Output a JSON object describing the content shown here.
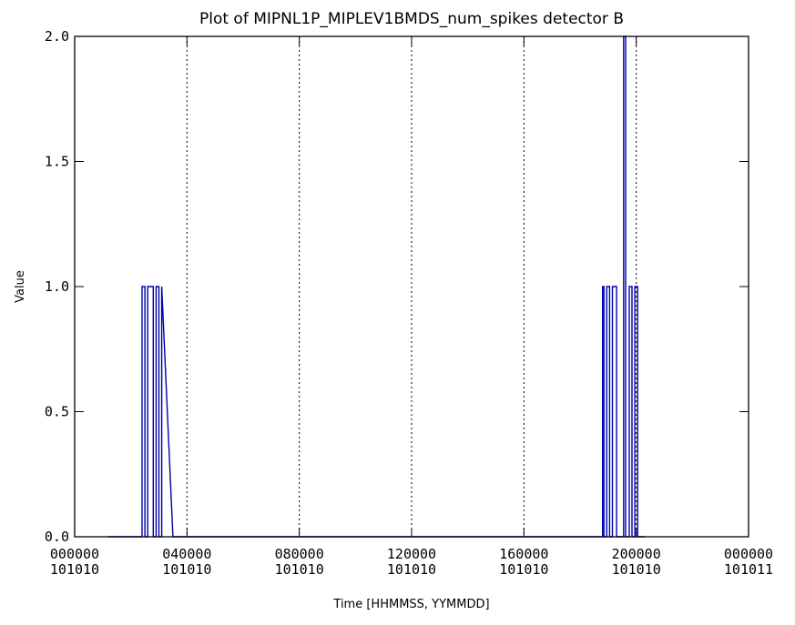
{
  "chart_data": {
    "type": "line",
    "title": "Plot of MIPNL1P_MIPLEV1BMDS_num_spikes detector B",
    "xlabel": "Time [HHMMSS, YYMMDD]",
    "ylabel": "Value",
    "xlim": [
      0,
      24
    ],
    "ylim": [
      0,
      2
    ],
    "grid": "vertical dotted lines at x tick positions",
    "colors": {
      "series": "#0000aa",
      "axes": "#000000",
      "grid": "#000000"
    },
    "x_ticks": [
      {
        "x": 0,
        "time": "000000",
        "date": "101010"
      },
      {
        "x": 4,
        "time": "040000",
        "date": "101010"
      },
      {
        "x": 8,
        "time": "080000",
        "date": "101010"
      },
      {
        "x": 12,
        "time": "120000",
        "date": "101010"
      },
      {
        "x": 16,
        "time": "160000",
        "date": "101010"
      },
      {
        "x": 20,
        "time": "200000",
        "date": "101010"
      },
      {
        "x": 24,
        "time": "000000",
        "date": "101011"
      }
    ],
    "y_ticks": [
      "0.0",
      "0.5",
      "1.0",
      "1.5",
      "2.0"
    ],
    "x_unit": "hours since 000000 101010",
    "series": [
      {
        "values_description": "num_spikes vs time",
        "x": [
          1.2,
          2.4,
          2.4,
          2.5,
          2.5,
          2.6,
          2.6,
          2.8,
          2.8,
          2.9,
          2.9,
          3.0,
          3.0,
          3.1,
          3.1,
          3.5,
          18.7,
          18.8,
          18.8,
          18.85,
          18.85,
          18.95,
          18.95,
          19.05,
          19.05,
          19.15,
          19.15,
          19.3,
          19.3,
          19.55,
          19.55,
          19.62,
          19.62,
          19.75,
          19.75,
          19.85,
          19.85,
          19.95,
          19.95,
          20.05,
          20.05,
          20.3
        ],
        "y": [
          0,
          0,
          1,
          1,
          0,
          0,
          1,
          1,
          0,
          0,
          1,
          1,
          0,
          0,
          1,
          0,
          0,
          0,
          1,
          1,
          0,
          0,
          1,
          1,
          0,
          0,
          1,
          1,
          0,
          0,
          2,
          2,
          0,
          0,
          1,
          1,
          0,
          0,
          1,
          1,
          0,
          0
        ]
      }
    ]
  }
}
